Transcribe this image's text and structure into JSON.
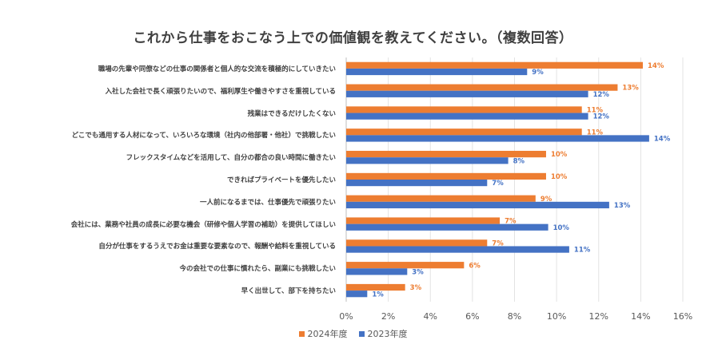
{
  "chart_data": {
    "type": "bar",
    "orientation": "horizontal",
    "title": "これから仕事をおこなう上での価値観を教えてください。（複数回答）",
    "categories": [
      "職場の先輩や同僚などの仕事の関係者と個人的な交流を積極的にしていきたい",
      "入社した会社で長く頑張りたいので、福利厚生や働きやすさを重視している",
      "残業はできるだけしたくない",
      "どこでも通用する人材になって、いろいろな環境（社内の他部署・他社）で挑戦したい",
      "フレックスタイムなどを活用して、自分の都合の良い時間に働きたい",
      "できればプライベートを優先したい",
      "一人前になるまでは、仕事優先で頑張りたい",
      "会社には、業務や社員の成長に必要な機会（研修や個人学習の補助）を提供してほしい",
      "自分が仕事をするうえでお金は重要な要素なので、報酬や給料を重視している",
      "今の会社での仕事に慣れたら、副業にも挑戦したい",
      "早く出世して、部下を持ちたい"
    ],
    "series": [
      {
        "name": "2024年度",
        "color": "#ED7D31",
        "values": [
          14.1,
          12.9,
          11.2,
          11.2,
          9.5,
          9.5,
          9.0,
          7.3,
          6.7,
          5.6,
          2.8
        ],
        "labels": [
          "14%",
          "13%",
          "11%",
          "11%",
          "10%",
          "10%",
          "9%",
          "7%",
          "7%",
          "6%",
          "3%"
        ]
      },
      {
        "name": "2023年度",
        "color": "#4472C4",
        "values": [
          8.6,
          11.5,
          11.5,
          14.4,
          7.7,
          6.7,
          12.5,
          9.6,
          10.6,
          2.9,
          1.0
        ],
        "labels": [
          "9%",
          "12%",
          "12%",
          "14%",
          "8%",
          "7%",
          "13%",
          "10%",
          "11%",
          "3%",
          "1%"
        ]
      }
    ],
    "xlim": [
      0,
      16
    ],
    "xticks": [
      "0%",
      "2%",
      "4%",
      "6%",
      "8%",
      "10%",
      "12%",
      "14%",
      "16%"
    ],
    "grid": true,
    "legend": "bottom"
  }
}
